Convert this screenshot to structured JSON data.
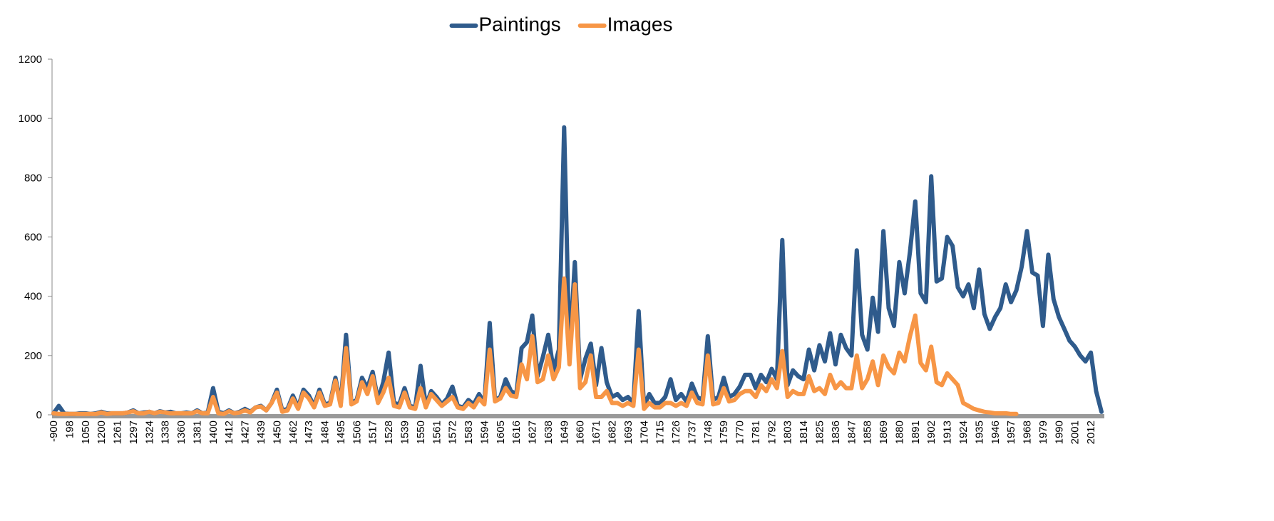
{
  "chart_data": {
    "type": "line",
    "categories": [
      "-900",
      null,
      null,
      "198",
      null,
      null,
      "1050",
      null,
      null,
      "1200",
      null,
      null,
      "1261",
      null,
      null,
      "1297",
      null,
      null,
      "1324",
      null,
      null,
      "1338",
      null,
      null,
      "1360",
      null,
      null,
      "1381",
      null,
      null,
      "1400",
      null,
      null,
      "1412",
      null,
      null,
      "1427",
      null,
      null,
      "1439",
      null,
      null,
      "1450",
      null,
      null,
      "1462",
      null,
      null,
      "1473",
      null,
      null,
      "1484",
      null,
      null,
      "1495",
      null,
      null,
      "1506",
      null,
      null,
      "1517",
      null,
      null,
      "1528",
      null,
      null,
      "1539",
      null,
      null,
      "1550",
      null,
      null,
      "1561",
      null,
      null,
      "1572",
      null,
      null,
      "1583",
      null,
      null,
      "1594",
      null,
      null,
      "1605",
      null,
      null,
      "1616",
      null,
      null,
      "1627",
      null,
      null,
      "1638",
      null,
      null,
      "1649",
      null,
      null,
      "1660",
      null,
      null,
      "1671",
      null,
      null,
      "1682",
      null,
      null,
      "1693",
      null,
      null,
      "1704",
      null,
      null,
      "1715",
      null,
      null,
      "1726",
      null,
      null,
      "1737",
      null,
      null,
      "1748",
      null,
      null,
      "1759",
      null,
      null,
      "1770",
      null,
      null,
      "1781",
      null,
      null,
      "1792",
      null,
      null,
      "1803",
      null,
      null,
      "1814",
      null,
      null,
      "1825",
      null,
      null,
      "1836",
      null,
      null,
      "1847",
      null,
      null,
      "1858",
      null,
      null,
      "1869",
      null,
      null,
      "1880",
      null,
      null,
      "1891",
      null,
      null,
      "1902",
      null,
      null,
      "1913",
      null,
      null,
      "1924",
      null,
      null,
      "1935",
      null,
      null,
      "1946",
      null,
      null,
      "1957",
      null,
      null,
      "1968",
      null,
      null,
      "1979",
      null,
      null,
      "1990",
      null,
      null,
      "2001",
      null,
      null,
      "2012",
      null,
      null
    ],
    "series": [
      {
        "name": "Paintings",
        "color": "#2f5b8c",
        "values": [
          5,
          30,
          5,
          3,
          3,
          5,
          5,
          3,
          5,
          10,
          5,
          5,
          5,
          5,
          8,
          15,
          5,
          8,
          10,
          5,
          12,
          8,
          10,
          5,
          5,
          8,
          5,
          15,
          5,
          8,
          90,
          10,
          5,
          15,
          5,
          10,
          20,
          10,
          25,
          30,
          15,
          40,
          85,
          15,
          20,
          65,
          25,
          85,
          65,
          30,
          85,
          35,
          40,
          125,
          35,
          270,
          40,
          50,
          125,
          90,
          145,
          50,
          110,
          210,
          40,
          35,
          90,
          30,
          25,
          165,
          30,
          80,
          60,
          35,
          55,
          95,
          30,
          25,
          50,
          35,
          70,
          40,
          310,
          50,
          60,
          120,
          80,
          70,
          225,
          245,
          335,
          130,
          195,
          270,
          150,
          220,
          970,
          205,
          515,
          120,
          190,
          240,
          100,
          225,
          110,
          60,
          70,
          50,
          60,
          40,
          350,
          30,
          70,
          40,
          40,
          60,
          120,
          50,
          70,
          45,
          105,
          60,
          50,
          265,
          50,
          60,
          125,
          60,
          70,
          95,
          135,
          135,
          90,
          135,
          110,
          155,
          120,
          590,
          100,
          150,
          130,
          120,
          220,
          150,
          235,
          180,
          275,
          170,
          270,
          225,
          200,
          555,
          270,
          220,
          395,
          280,
          620,
          360,
          300,
          515,
          410,
          550,
          720,
          410,
          380,
          805,
          450,
          460,
          600,
          570,
          430,
          400,
          440,
          360,
          490,
          340,
          290,
          330,
          360,
          440,
          380,
          420,
          500,
          620,
          480,
          470,
          300,
          540,
          390,
          330,
          290,
          250,
          230,
          200,
          180,
          210,
          80,
          10
        ]
      },
      {
        "name": "Images",
        "color": "#f79646",
        "values": [
          5,
          3,
          3,
          3,
          3,
          3,
          3,
          3,
          3,
          8,
          3,
          5,
          5,
          5,
          8,
          12,
          5,
          5,
          10,
          5,
          10,
          8,
          5,
          5,
          5,
          5,
          5,
          12,
          5,
          5,
          60,
          5,
          3,
          12,
          5,
          8,
          15,
          8,
          25,
          28,
          15,
          40,
          75,
          10,
          15,
          55,
          20,
          75,
          55,
          25,
          75,
          30,
          35,
          115,
          30,
          225,
          35,
          45,
          110,
          70,
          130,
          40,
          75,
          125,
          30,
          25,
          75,
          25,
          20,
          90,
          25,
          70,
          50,
          30,
          45,
          60,
          25,
          20,
          40,
          25,
          55,
          35,
          220,
          45,
          55,
          90,
          65,
          60,
          170,
          120,
          265,
          110,
          120,
          200,
          120,
          160,
          460,
          170,
          440,
          90,
          110,
          200,
          60,
          60,
          80,
          40,
          40,
          30,
          40,
          30,
          220,
          20,
          40,
          25,
          25,
          40,
          40,
          30,
          40,
          30,
          75,
          40,
          35,
          200,
          35,
          40,
          90,
          45,
          50,
          70,
          80,
          80,
          60,
          100,
          80,
          120,
          90,
          215,
          60,
          80,
          70,
          70,
          130,
          80,
          90,
          70,
          135,
          90,
          110,
          90,
          90,
          200,
          90,
          120,
          180,
          100,
          200,
          160,
          140,
          210,
          180,
          265,
          335,
          175,
          150,
          230,
          110,
          100,
          140,
          120,
          100,
          40,
          30,
          20,
          15,
          10,
          8,
          5,
          5,
          5,
          3,
          3,
          null,
          null,
          null,
          null,
          null,
          null,
          3,
          null,
          3,
          null,
          null,
          null,
          null,
          null,
          null,
          null
        ]
      }
    ],
    "ylim": [
      0,
      1200
    ],
    "yticks": [
      0,
      200,
      400,
      600,
      800,
      1000,
      1200
    ],
    "legend": "upper center"
  }
}
